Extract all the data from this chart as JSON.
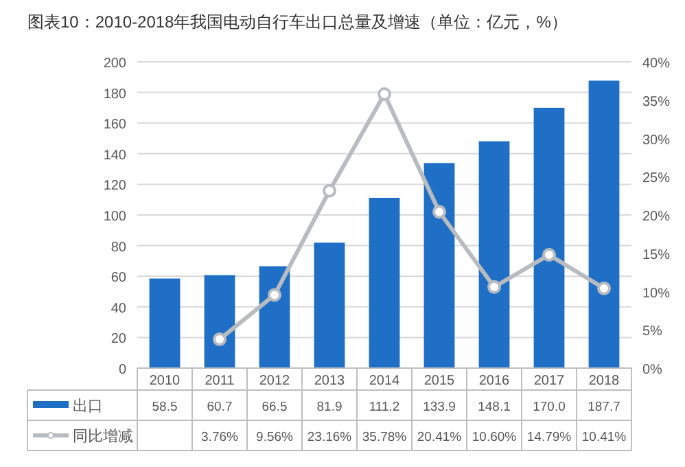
{
  "chart_data": {
    "type": "bar",
    "title": "图表10：2010-2018年我国电动自行车出口总量及增速（单位：亿元，%）",
    "categories": [
      "2010",
      "2011",
      "2012",
      "2013",
      "2014",
      "2015",
      "2016",
      "2017",
      "2018"
    ],
    "series": [
      {
        "name": "出口",
        "color": "#1f6fc6",
        "values": [
          58.5,
          60.7,
          66.5,
          81.9,
          111.2,
          133.9,
          148.1,
          170.0,
          187.7
        ],
        "value_labels": [
          "58.5",
          "60.7",
          "66.5",
          "81.9",
          "111.2",
          "133.9",
          "148.1",
          "170.0",
          "187.7"
        ]
      },
      {
        "name": "同比增减",
        "type": "line",
        "axis": "y2",
        "color": "#b8bcc0",
        "marker": "circle",
        "values": [
          null,
          3.76,
          9.56,
          23.16,
          35.78,
          20.41,
          10.6,
          14.79,
          10.41
        ],
        "value_labels": [
          null,
          "3.76%",
          "9.56%",
          "23.16%",
          "35.78%",
          "20.41%",
          "10.60%",
          "14.79%",
          "10.41%"
        ]
      }
    ],
    "ylim": [
      0,
      200
    ],
    "yticks": [
      0,
      20,
      40,
      60,
      80,
      100,
      120,
      140,
      160,
      180,
      200
    ],
    "y2lim": [
      0,
      40
    ],
    "y2ticks": [
      {
        "value": 0,
        "label": "0%"
      },
      {
        "value": 5,
        "label": "5%"
      },
      {
        "value": 10,
        "label": "10%"
      },
      {
        "value": 15,
        "label": "15%"
      },
      {
        "value": 20,
        "label": "20%"
      },
      {
        "value": 25,
        "label": "25%"
      },
      {
        "value": 30,
        "label": "30%"
      },
      {
        "value": 35,
        "label": "35%"
      },
      {
        "value": 40,
        "label": "40%"
      }
    ],
    "grid": "y",
    "legend": "bottom"
  }
}
